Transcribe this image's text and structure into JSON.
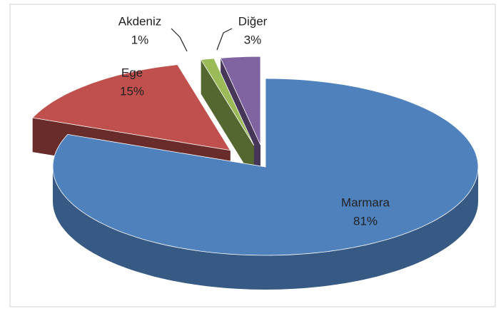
{
  "chart_data": {
    "type": "pie3d",
    "categories": [
      "Marmara",
      "Ege",
      "Akdeniz",
      "Diğer"
    ],
    "values": [
      81,
      15,
      1,
      3
    ],
    "value_labels": [
      "81%",
      "15%",
      "1%",
      "3%"
    ],
    "colors": [
      "#4f81bd",
      "#c0504d",
      "#9bbb59",
      "#8064a2"
    ]
  }
}
